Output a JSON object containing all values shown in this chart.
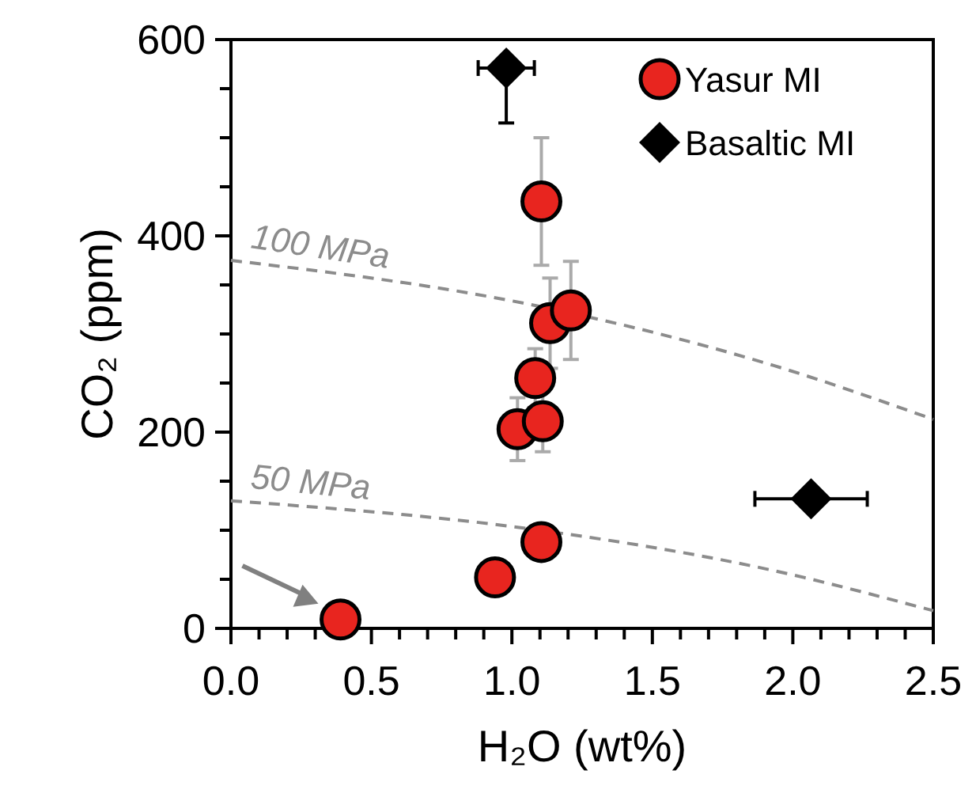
{
  "chart_data": {
    "type": "scatter",
    "xlabel": "H₂O (wt%)",
    "ylabel": "CO₂ (ppm)",
    "xlim": [
      0,
      2.5
    ],
    "ylim": [
      0,
      600
    ],
    "xticks": [
      {
        "value": 0,
        "label": "0.0"
      },
      {
        "value": 0.1,
        "label": null
      },
      {
        "value": 0.2,
        "label": null
      },
      {
        "value": 0.3,
        "label": null
      },
      {
        "value": 0.4,
        "label": null
      },
      0.5,
      {
        "value": 0.6,
        "label": null
      },
      {
        "value": 0.7,
        "label": null
      },
      {
        "value": 0.8,
        "label": null
      },
      {
        "value": 0.9,
        "label": null
      },
      {
        "value": 1,
        "label": "1.0"
      },
      {
        "value": 1.1,
        "label": null
      },
      {
        "value": 1.2,
        "label": null
      },
      {
        "value": 1.3,
        "label": null
      },
      {
        "value": 1.4,
        "label": null
      },
      1.5,
      {
        "value": 1.6,
        "label": null
      },
      {
        "value": 1.7,
        "label": null
      },
      {
        "value": 1.8,
        "label": null
      },
      {
        "value": 1.9,
        "label": null
      },
      {
        "value": 2,
        "label": "2.0"
      },
      {
        "value": 2.1,
        "label": null
      },
      {
        "value": 2.2,
        "label": null
      },
      {
        "value": 2.3,
        "label": null
      },
      {
        "value": 2.4,
        "label": null
      },
      2.5
    ],
    "yticks": [
      0,
      {
        "value": 50,
        "label": null
      },
      {
        "value": 100,
        "label": null
      },
      {
        "value": 150,
        "label": null
      },
      200,
      {
        "value": 250,
        "label": null
      },
      {
        "value": 300,
        "label": null
      },
      {
        "value": 350,
        "label": null
      },
      400,
      {
        "value": 450,
        "label": null
      },
      {
        "value": 500,
        "label": null
      },
      {
        "value": 550,
        "label": null
      },
      600
    ],
    "grid": false,
    "legend": "top right",
    "series": [
      {
        "name": "100 MPa",
        "type": "line",
        "line_style": "dashed",
        "color": "#8c8c8c",
        "x": [
          0,
          1.1,
          1.93,
          2.5
        ],
        "values": [
          375,
          328,
          268,
          213
        ]
      },
      {
        "name": "50 MPa",
        "type": "line",
        "line_style": "dashed",
        "color": "#8c8c8c",
        "x": [
          0,
          1.1,
          1.93,
          2.5
        ],
        "values": [
          130,
          100,
          59,
          18
        ]
      },
      {
        "name": "Yasur MI",
        "marker": "circle",
        "color": "#e8251f",
        "x": [
          0.39,
          0.94,
          1.105,
          1.02,
          1.11,
          1.083,
          1.136,
          1.21,
          1.105
        ],
        "values": [
          9,
          52,
          88,
          203,
          211,
          255,
          311,
          324,
          435
        ],
        "xerrors": [
          null,
          0.06,
          0.06,
          0.06,
          0.06,
          0.06,
          0.06,
          0.06,
          0.065
        ],
        "errors": [
          null,
          null,
          null,
          32,
          31,
          30,
          46,
          50,
          65
        ]
      },
      {
        "name": "Basaltic MI",
        "marker": "diamond",
        "color": "#000000",
        "x": [
          0.98,
          2.065
        ],
        "values": [
          571,
          132
        ],
        "xerrors": [
          0.1,
          0.2
        ],
        "errors": [
          [
            515,
            571
          ],
          null
        ]
      }
    ]
  }
}
